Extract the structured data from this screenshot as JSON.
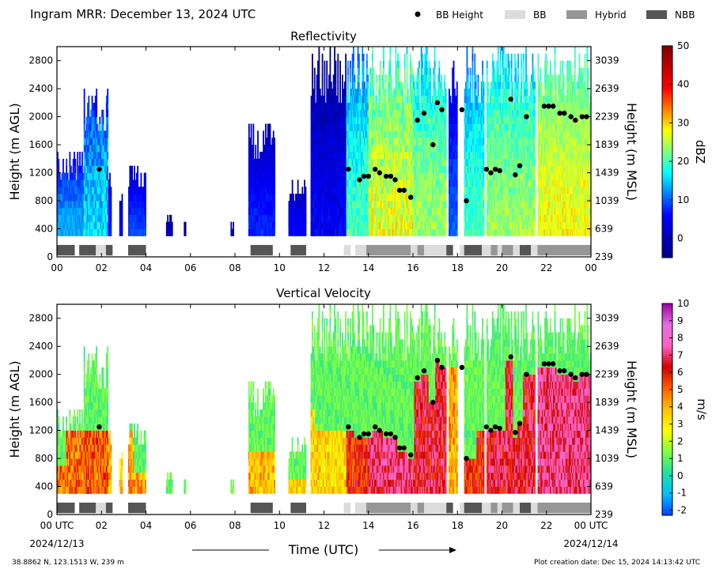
{
  "header": {
    "title": "Ingram MRR:  December 13, 2024 UTC",
    "legend": [
      {
        "label": "BB Height",
        "kind": "dot",
        "color": "#000000"
      },
      {
        "label": "BB",
        "kind": "swatch",
        "color": "#dcdcdc"
      },
      {
        "label": "Hybrid",
        "kind": "swatch",
        "color": "#969696"
      },
      {
        "label": "NBB",
        "kind": "swatch",
        "color": "#555555"
      }
    ]
  },
  "footer": {
    "location": "38.8862 N, 123.1513 W, 239 m",
    "creation": "Plot creation date: Dec 15, 2024 14:13:42 UTC",
    "xlabel": "Time (UTC)",
    "start_date": "2024/12/13",
    "end_date": "2024/12/14"
  },
  "chart_data": [
    {
      "type": "heatmap",
      "title": "Reflectivity",
      "ylabel": "Height (m AGL)",
      "y2label": "Height (m MSL)",
      "xlim": [
        0,
        24
      ],
      "ylim": [
        0,
        3000
      ],
      "xticks": [
        "00",
        "02",
        "04",
        "06",
        "08",
        "10",
        "12",
        "14",
        "16",
        "18",
        "20",
        "22",
        "00"
      ],
      "yticks": [
        0,
        400,
        800,
        1200,
        1600,
        2000,
        2400,
        2800
      ],
      "y2ticks": [
        239,
        639,
        1039,
        1439,
        1839,
        2239,
        2639,
        3039
      ],
      "colorbar": {
        "label": "dBZ",
        "min": -5,
        "max": 50,
        "ticks": [
          0,
          10,
          20,
          30,
          40,
          50
        ]
      }
    },
    {
      "type": "heatmap",
      "title": "Vertical Velocity",
      "ylabel": "Height (m AGL)",
      "y2label": "Height (m MSL)",
      "xlim": [
        0,
        24
      ],
      "ylim": [
        0,
        3000
      ],
      "xticks": [
        "00 UTC",
        "02",
        "04",
        "06",
        "08",
        "10",
        "12",
        "14",
        "16",
        "18",
        "20",
        "22",
        "00 UTC"
      ],
      "yticks": [
        0,
        400,
        800,
        1200,
        1600,
        2000,
        2400,
        2800
      ],
      "y2ticks": [
        239,
        639,
        1039,
        1439,
        1839,
        2239,
        2639,
        3039
      ],
      "colorbar": {
        "label": "m/s",
        "min": -2.3,
        "max": 10,
        "ticks": [
          -2,
          -1,
          0,
          1,
          2,
          3,
          4,
          5,
          6,
          7,
          8,
          9,
          10
        ]
      }
    }
  ],
  "bright_band_heights": [
    {
      "t": 1.9,
      "h": 1250
    },
    {
      "t": 13.1,
      "h": 1250
    },
    {
      "t": 13.6,
      "h": 1100
    },
    {
      "t": 13.8,
      "h": 1150
    },
    {
      "t": 14.0,
      "h": 1150
    },
    {
      "t": 14.3,
      "h": 1250
    },
    {
      "t": 14.5,
      "h": 1200
    },
    {
      "t": 14.8,
      "h": 1150
    },
    {
      "t": 15.0,
      "h": 1150
    },
    {
      "t": 15.2,
      "h": 1100
    },
    {
      "t": 15.4,
      "h": 950
    },
    {
      "t": 15.6,
      "h": 950
    },
    {
      "t": 15.9,
      "h": 850
    },
    {
      "t": 16.2,
      "h": 1950
    },
    {
      "t": 16.5,
      "h": 2050
    },
    {
      "t": 16.9,
      "h": 1600
    },
    {
      "t": 17.1,
      "h": 2200
    },
    {
      "t": 17.3,
      "h": 2100
    },
    {
      "t": 18.2,
      "h": 2100
    },
    {
      "t": 18.4,
      "h": 800
    },
    {
      "t": 19.3,
      "h": 1250
    },
    {
      "t": 19.5,
      "h": 1200
    },
    {
      "t": 19.7,
      "h": 1250
    },
    {
      "t": 19.9,
      "h": 1230
    },
    {
      "t": 20.4,
      "h": 2250
    },
    {
      "t": 20.6,
      "h": 1170
    },
    {
      "t": 20.8,
      "h": 1300
    },
    {
      "t": 21.1,
      "h": 2000
    },
    {
      "t": 21.9,
      "h": 2150
    },
    {
      "t": 22.1,
      "h": 2150
    },
    {
      "t": 22.3,
      "h": 2150
    },
    {
      "t": 22.6,
      "h": 2050
    },
    {
      "t": 22.8,
      "h": 2050
    },
    {
      "t": 23.1,
      "h": 2000
    },
    {
      "t": 23.3,
      "h": 1950
    },
    {
      "t": 23.6,
      "h": 2000
    },
    {
      "t": 23.8,
      "h": 2000
    }
  ],
  "bb_classification": [
    {
      "start": 0.0,
      "end": 0.8,
      "class": "NBB"
    },
    {
      "start": 1.0,
      "end": 1.75,
      "class": "NBB"
    },
    {
      "start": 1.75,
      "end": 2.2,
      "class": "BB"
    },
    {
      "start": 2.2,
      "end": 2.5,
      "class": "NBB"
    },
    {
      "start": 3.2,
      "end": 4.0,
      "class": "NBB"
    },
    {
      "start": 8.7,
      "end": 9.7,
      "class": "NBB"
    },
    {
      "start": 10.5,
      "end": 11.2,
      "class": "NBB"
    },
    {
      "start": 12.9,
      "end": 13.2,
      "class": "BB"
    },
    {
      "start": 13.4,
      "end": 13.9,
      "class": "BB"
    },
    {
      "start": 13.9,
      "end": 15.9,
      "class": "Hybrid"
    },
    {
      "start": 15.9,
      "end": 16.2,
      "class": "BB"
    },
    {
      "start": 16.2,
      "end": 16.5,
      "class": "Hybrid"
    },
    {
      "start": 16.5,
      "end": 17.5,
      "class": "BB"
    },
    {
      "start": 17.5,
      "end": 17.8,
      "class": "NBB"
    },
    {
      "start": 18.1,
      "end": 18.3,
      "class": "BB"
    },
    {
      "start": 18.3,
      "end": 19.1,
      "class": "NBB"
    },
    {
      "start": 19.1,
      "end": 19.5,
      "class": "BB"
    },
    {
      "start": 19.5,
      "end": 19.8,
      "class": "Hybrid"
    },
    {
      "start": 19.8,
      "end": 20.0,
      "class": "BB"
    },
    {
      "start": 20.0,
      "end": 20.5,
      "class": "Hybrid"
    },
    {
      "start": 20.5,
      "end": 20.8,
      "class": "BB"
    },
    {
      "start": 20.8,
      "end": 21.3,
      "class": "NBB"
    },
    {
      "start": 21.3,
      "end": 21.6,
      "class": "BB"
    },
    {
      "start": 21.6,
      "end": 24.0,
      "class": "Hybrid"
    }
  ],
  "echo_segments": [
    {
      "start": 0.0,
      "end": 1.6,
      "top": 1500,
      "z": 14,
      "w": 2
    },
    {
      "start": 1.2,
      "end": 2.3,
      "top": 2400,
      "z": 16,
      "w": 4
    },
    {
      "start": 2.3,
      "end": 2.45,
      "top": 1200,
      "z": 8,
      "w": 0.8
    },
    {
      "start": 2.8,
      "end": 2.95,
      "top": 900,
      "z": 6,
      "w": 0.6
    },
    {
      "start": 3.2,
      "end": 4.0,
      "top": 1300,
      "z": 10,
      "w": 1.2
    },
    {
      "start": 4.9,
      "end": 5.2,
      "top": 600,
      "z": 3,
      "w": 0.6
    },
    {
      "start": 5.7,
      "end": 5.8,
      "top": 500,
      "z": 2,
      "w": 0.5
    },
    {
      "start": 7.8,
      "end": 7.95,
      "top": 500,
      "z": 3,
      "w": 0.6
    },
    {
      "start": 8.6,
      "end": 9.8,
      "top": 1900,
      "z": 8,
      "w": 1.5
    },
    {
      "start": 10.4,
      "end": 11.2,
      "top": 1050,
      "z": 7,
      "w": 1.0
    },
    {
      "start": 11.4,
      "end": 11.6,
      "top": 1100,
      "z": 5,
      "w": 0.8
    },
    {
      "start": 11.4,
      "end": 13.0,
      "top": 3000,
      "z": 5,
      "w": 3.0
    },
    {
      "start": 13.0,
      "end": 14.0,
      "top": 3000,
      "z": 20,
      "w": 3.5
    },
    {
      "start": 14.0,
      "end": 16.0,
      "top": 3000,
      "z": 27,
      "w": 4.5
    },
    {
      "start": 16.0,
      "end": 17.5,
      "top": 3000,
      "z": 24,
      "w": 3.5
    },
    {
      "start": 17.6,
      "end": 18.0,
      "top": 3000,
      "z": 10,
      "w": 1.5
    },
    {
      "start": 18.3,
      "end": 19.2,
      "top": 3000,
      "z": 20,
      "w": 3.0
    },
    {
      "start": 19.3,
      "end": 21.5,
      "top": 3000,
      "z": 24,
      "w": 3.5
    },
    {
      "start": 21.6,
      "end": 24.0,
      "top": 3000,
      "z": 28,
      "w": 3.0
    }
  ],
  "colors": {
    "jet": [
      "#000080",
      "#0000ff",
      "#00ffff",
      "#ffff00",
      "#ff0000",
      "#800000"
    ],
    "velocity": [
      "#0040ff",
      "#00c0ff",
      "#20e0a0",
      "#80ff40",
      "#ffff00",
      "#ffc000",
      "#ff6000",
      "#d00000",
      "#ff60c0",
      "#e070e0",
      "#a000a0"
    ]
  }
}
